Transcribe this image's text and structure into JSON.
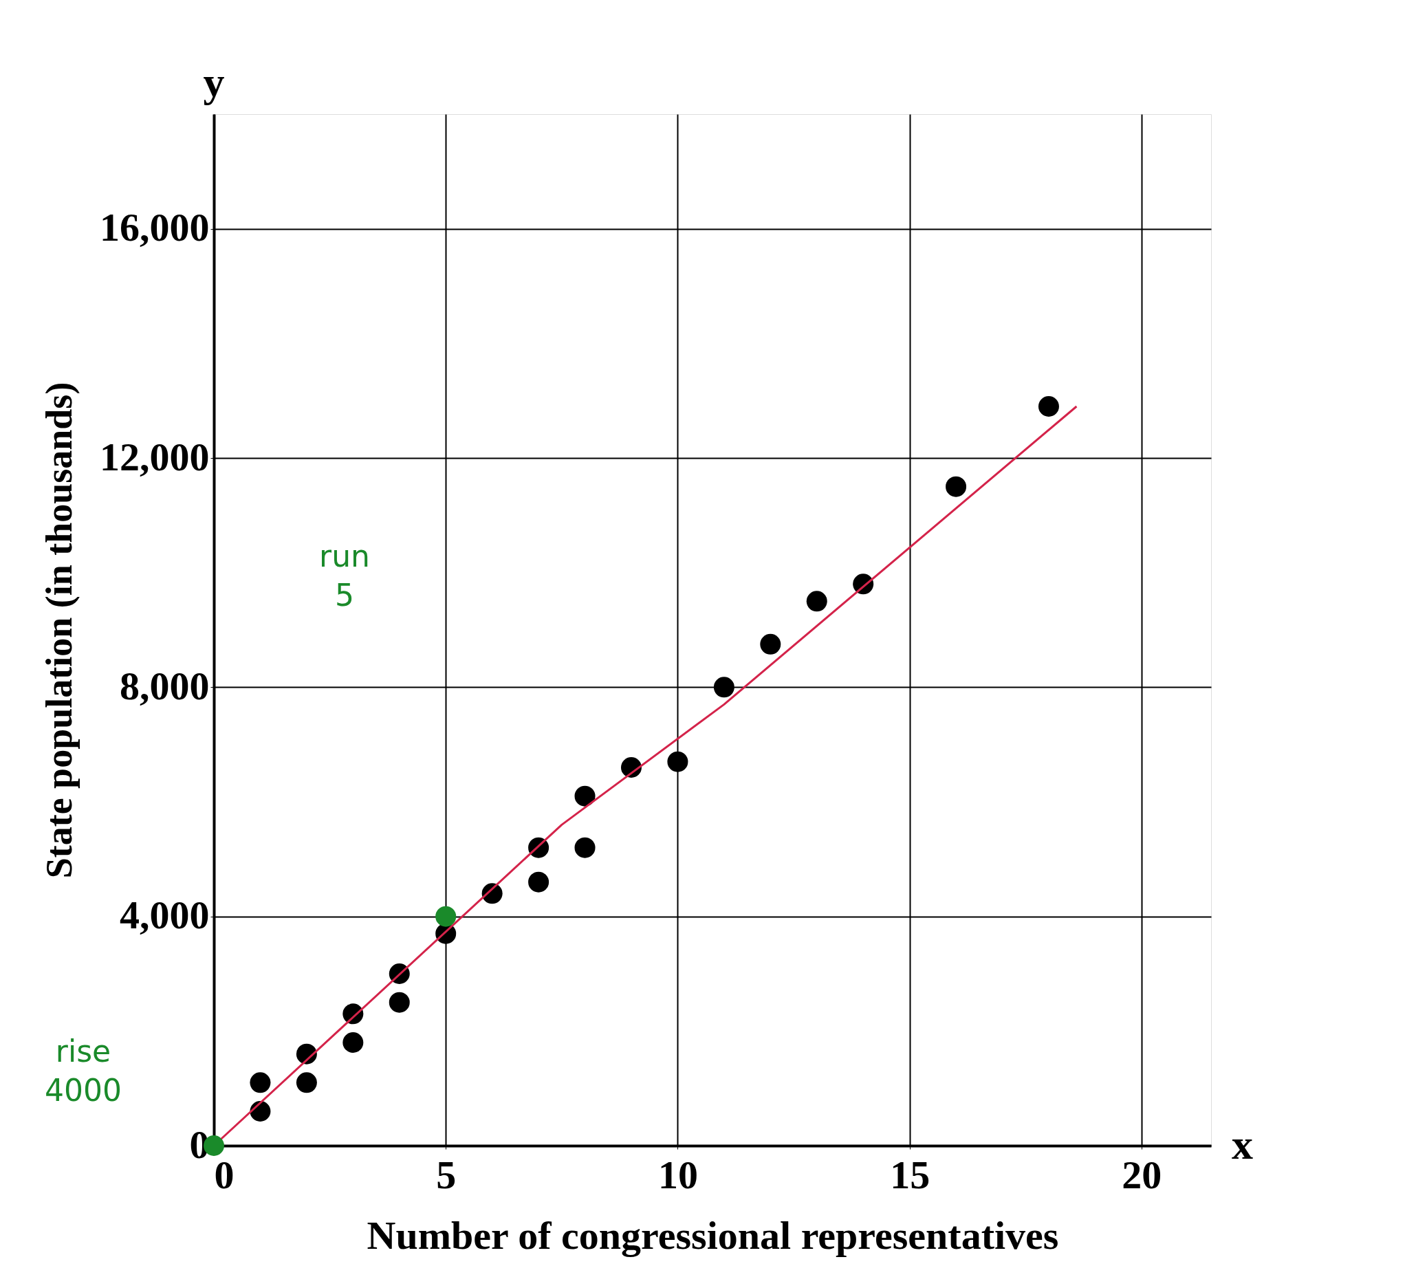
{
  "chart_data": {
    "type": "scatter",
    "xlabel": "Number of congressional representatives",
    "ylabel": "State population (in thousands)",
    "xlim": [
      0,
      21.5
    ],
    "ylim": [
      0,
      18000
    ],
    "xticks": [
      0,
      5,
      10,
      15,
      20
    ],
    "yticks": [
      0,
      {
        "value": 4000,
        "label": "4,000"
      },
      {
        "value": 8000,
        "label": "8,000"
      },
      {
        "value": 12000,
        "label": "12,000"
      },
      {
        "value": 16000,
        "label": "16,000"
      }
    ],
    "grid": true,
    "series": [
      {
        "color": "#000000",
        "marker": "circle",
        "x": [
          1,
          1,
          2,
          2,
          3,
          3,
          4,
          4,
          5,
          6,
          7,
          7,
          8,
          8,
          9,
          10,
          11,
          12,
          13,
          14,
          16,
          18
        ],
        "values": [
          1100,
          600,
          1600,
          1100,
          2300,
          1800,
          3000,
          2500,
          3700,
          4400,
          5200,
          4600,
          5200,
          6100,
          6600,
          6700,
          8000,
          8750,
          9500,
          9800,
          11500,
          12900
        ]
      },
      {
        "type": "line",
        "color": "#d4234a",
        "marker": "none",
        "line_style": "solid",
        "x": [
          0,
          7.5,
          11,
          18.6
        ],
        "values": [
          0,
          5600,
          7700,
          12900
        ]
      },
      {
        "type": "scatter",
        "color": "#1a8a2a",
        "marker": "circle",
        "x": [
          0,
          5
        ],
        "values": [
          0,
          4000
        ]
      }
    ],
    "annotations": [
      "y",
      "x",
      "run\n5",
      "rise\n4000"
    ]
  }
}
